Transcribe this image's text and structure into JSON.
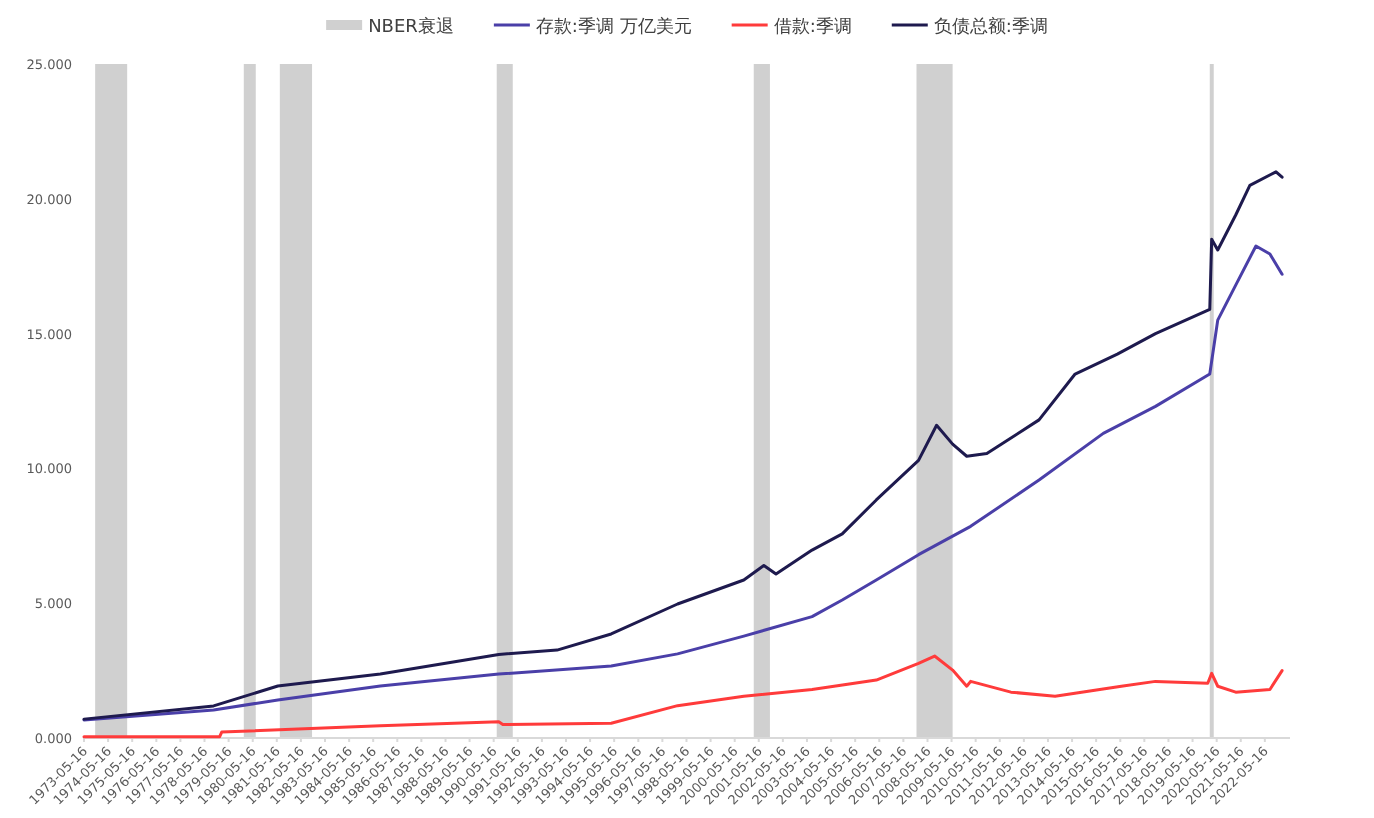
{
  "chart_data": {
    "type": "line",
    "legend": "top",
    "ylim": [
      0,
      25
    ],
    "yticks": [
      {
        "value": 0,
        "label": "0.000"
      },
      {
        "value": 5,
        "label": "5.000"
      },
      {
        "value": 10,
        "label": "10.000"
      },
      {
        "value": 15,
        "label": "15.000"
      },
      {
        "value": 20,
        "label": "20.000"
      },
      {
        "value": 25,
        "label": "25.000"
      }
    ],
    "xlim": [
      "1973-05-16",
      "2023-06-01"
    ],
    "xticks": [
      "1973-05-16",
      "1974-05-16",
      "1975-05-16",
      "1976-05-16",
      "1977-05-16",
      "1978-05-16",
      "1979-05-16",
      "1980-05-16",
      "1981-05-16",
      "1982-05-16",
      "1983-05-16",
      "1984-05-16",
      "1985-05-16",
      "1986-05-16",
      "1987-05-16",
      "1988-05-16",
      "1989-05-16",
      "1990-05-16",
      "1991-05-16",
      "1992-05-16",
      "1993-05-16",
      "1994-05-16",
      "1995-05-16",
      "1996-05-16",
      "1997-05-16",
      "1998-05-16",
      "1999-05-16",
      "2000-05-16",
      "2001-05-16",
      "2002-05-16",
      "2003-05-16",
      "2004-05-16",
      "2005-05-16",
      "2006-05-16",
      "2007-05-16",
      "2008-05-16",
      "2009-05-16",
      "2010-05-16",
      "2011-05-16",
      "2012-05-16",
      "2013-05-16",
      "2014-05-16",
      "2015-05-16",
      "2016-05-16",
      "2017-05-16",
      "2018-05-16",
      "2019-05-16",
      "2020-05-16",
      "2021-05-16",
      "2022-05-16"
    ],
    "bands": [
      {
        "axis": "x",
        "from": "1973-11-01",
        "to": "1975-03-01",
        "label": "NBER衰退",
        "color": "#d0d0d0"
      },
      {
        "axis": "x",
        "from": "1980-01-01",
        "to": "1980-07-01",
        "color": "#d0d0d0"
      },
      {
        "axis": "x",
        "from": "1981-07-01",
        "to": "1982-11-01",
        "color": "#d0d0d0"
      },
      {
        "axis": "x",
        "from": "1990-07-01",
        "to": "1991-03-01",
        "color": "#d0d0d0"
      },
      {
        "axis": "x",
        "from": "2001-03-01",
        "to": "2001-11-01",
        "color": "#d0d0d0"
      },
      {
        "axis": "x",
        "from": "2007-12-01",
        "to": "2009-06-01",
        "color": "#d0d0d0"
      },
      {
        "axis": "x",
        "from": "2020-02-01",
        "to": "2020-04-01",
        "color": "#d0d0d0"
      }
    ],
    "series": [
      {
        "name": "存款:季调 万亿美元",
        "color": "#4a3fa8",
        "x": [
          "1973-05-16",
          "1978-10-01",
          "1981-06-01",
          "1985-09-01",
          "1990-08-01",
          "1995-04-01",
          "1998-01-01",
          "2000-10-01",
          "2003-08-01",
          "2004-11-01",
          "2006-04-01",
          "2008-01-01",
          "2010-03-01",
          "2013-01-01",
          "2015-09-01",
          "2017-11-01",
          "2020-02-01",
          "2020-06-01",
          "2021-03-01",
          "2022-01-01",
          "2022-08-01",
          "2023-02-01"
        ],
        "values": [
          0.67,
          1.04,
          1.41,
          1.93,
          2.37,
          2.67,
          3.12,
          3.78,
          4.5,
          5.12,
          5.86,
          6.8,
          7.85,
          9.57,
          11.3,
          12.3,
          13.5,
          15.5,
          16.8,
          18.25,
          17.95,
          17.2
        ]
      },
      {
        "name": "借款:季调",
        "color": "#ff3b3b",
        "x": [
          "1973-05-16",
          "1979-01-01",
          "1979-02-01",
          "1985-09-01",
          "1990-08-01",
          "1990-10-01",
          "1995-04-01",
          "1998-01-01",
          "2000-10-01",
          "2003-08-01",
          "2006-04-01",
          "2008-01-01",
          "2008-09-01",
          "2009-06-01",
          "2010-01-01",
          "2010-03-01",
          "2011-11-01",
          "2013-09-01",
          "2016-06-01",
          "2017-11-01",
          "2020-01-01",
          "2020-03-01",
          "2020-06-01",
          "2021-03-01",
          "2022-08-01",
          "2023-02-01"
        ],
        "values": [
          0.05,
          0.05,
          0.22,
          0.45,
          0.6,
          0.5,
          0.55,
          1.2,
          1.55,
          1.8,
          2.15,
          2.77,
          3.04,
          2.52,
          1.92,
          2.1,
          1.7,
          1.55,
          1.92,
          2.1,
          2.03,
          2.4,
          1.92,
          1.7,
          1.8,
          2.5
        ]
      },
      {
        "name": "负债总额:季调",
        "color": "#1e1a4e",
        "x": [
          "1973-05-16",
          "1978-10-01",
          "1981-06-01",
          "1985-09-01",
          "1990-08-01",
          "1993-01-01",
          "1995-04-01",
          "1998-01-01",
          "2000-10-01",
          "2001-08-01",
          "2002-02-01",
          "2003-08-01",
          "2004-11-01",
          "2006-04-01",
          "2008-01-01",
          "2008-10-01",
          "2009-06-01",
          "2010-01-01",
          "2010-11-01",
          "2013-01-01",
          "2014-07-01",
          "2016-04-01",
          "2017-11-01",
          "2020-02-01",
          "2020-03-01",
          "2020-06-01",
          "2021-03-01",
          "2021-10-01",
          "2022-11-01",
          "2023-02-01"
        ],
        "values": [
          0.7,
          1.19,
          1.93,
          2.37,
          3.1,
          3.26,
          3.86,
          4.97,
          5.86,
          6.4,
          6.08,
          6.97,
          7.57,
          8.83,
          10.3,
          11.6,
          10.9,
          10.45,
          10.55,
          11.8,
          13.5,
          14.24,
          15.0,
          15.9,
          18.5,
          18.1,
          19.4,
          20.5,
          21.0,
          20.8
        ]
      }
    ]
  }
}
